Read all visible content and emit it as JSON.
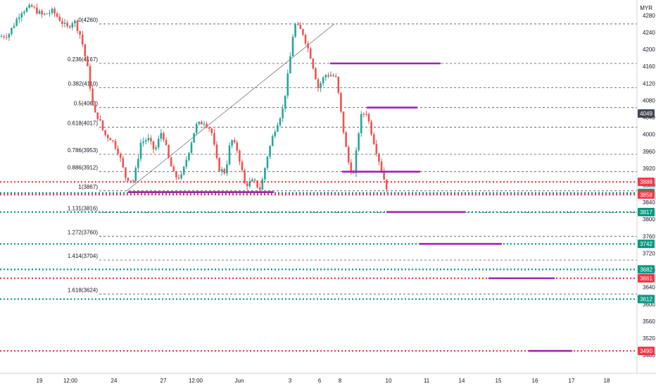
{
  "chart_data": {
    "type": "candlestick",
    "currency": "MYR",
    "y_axis": {
      "min": 3450,
      "max": 4300,
      "ticks": [
        4280,
        4240,
        4200,
        4160,
        4120,
        4080,
        4040,
        4000,
        3960,
        3920,
        3880,
        3840,
        3800,
        3760,
        3720,
        3680,
        3640,
        3600,
        3560,
        3520,
        3480
      ]
    },
    "x_axis": {
      "ticks": [
        "19",
        "12:00",
        "24",
        "27",
        "12:00",
        "Jun",
        "3",
        "6",
        "8",
        "10",
        "11",
        "14",
        "15",
        "16",
        "17",
        "18"
      ]
    },
    "last_price": 4049,
    "fib_levels": [
      {
        "label": "0(4260)",
        "value": 4260
      },
      {
        "label": "0.236(4167)",
        "value": 4167
      },
      {
        "label": "0.382(4110)",
        "value": 4110
      },
      {
        "label": "0.5(4063)",
        "value": 4063
      },
      {
        "label": "0.618(4017)",
        "value": 4017
      },
      {
        "label": "0.786(3953)",
        "value": 3953
      },
      {
        "label": "0.886(3912)",
        "value": 3912
      },
      {
        "label": "1(3867)",
        "value": 3867
      },
      {
        "label": "1.131(3816)",
        "value": 3816
      },
      {
        "label": "1.272(3760)",
        "value": 3760
      },
      {
        "label": "1.414(3704)",
        "value": 3704
      },
      {
        "label": "1.618(3624)",
        "value": 3624
      }
    ],
    "horizontal_levels": [
      {
        "value": 3888,
        "label": "3888",
        "color": "#f23645"
      },
      {
        "value": 3862,
        "label": "3862",
        "color": "#089981"
      },
      {
        "value": 3858,
        "label": "3858",
        "color": "#f23645"
      },
      {
        "value": 3817,
        "label": "3817",
        "color": "#089981"
      },
      {
        "value": 3742,
        "label": "3742",
        "color": "#089981"
      },
      {
        "value": 3682,
        "label": "3682",
        "color": "#089981"
      },
      {
        "value": 3661,
        "label": "3661",
        "color": "#f23645"
      },
      {
        "value": 3612,
        "label": "3612",
        "color": "#089981"
      },
      {
        "value": 3490,
        "label": "3490",
        "color": "#f23645"
      }
    ],
    "colors": {
      "up": "#26a69a",
      "down": "#ef5350",
      "support_line": "#9c27b0",
      "fib_line": "#555555"
    }
  }
}
